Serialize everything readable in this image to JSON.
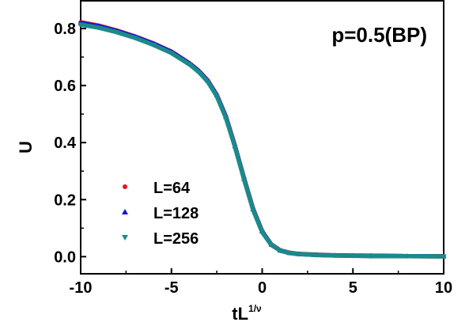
{
  "chart_data": {
    "type": "scatter",
    "title": "",
    "annotation": "p=0.5(BP)",
    "xlabel": "tL",
    "xlabel_superscript": "1/ν",
    "ylabel": "U",
    "xlim": [
      -10,
      10
    ],
    "ylim": [
      -0.06,
      0.9
    ],
    "xticks": [
      -10,
      -5,
      0,
      5,
      10
    ],
    "xtick_labels": [
      "-10",
      "-5",
      "0",
      "5",
      "10"
    ],
    "yticks": [
      0.0,
      0.2,
      0.4,
      0.6,
      0.8
    ],
    "ytick_labels": [
      "0.0",
      "0.2",
      "0.4",
      "0.6",
      "0.8"
    ],
    "grid": false,
    "legend_position": "lower-left",
    "series": [
      {
        "name": "L=64",
        "marker": "circle",
        "color": "#e8141c",
        "x": [
          -10,
          -9,
          -8,
          -7,
          -6,
          -5,
          -4,
          -3.5,
          -3,
          -2.5,
          -2,
          -1.5,
          -1,
          -0.5,
          0,
          0.5,
          1,
          1.5,
          2,
          3,
          4,
          5,
          6,
          8,
          10
        ],
        "y": [
          0.822,
          0.81,
          0.793,
          0.772,
          0.748,
          0.719,
          0.678,
          0.652,
          0.618,
          0.567,
          0.492,
          0.389,
          0.275,
          0.168,
          0.089,
          0.043,
          0.022,
          0.014,
          0.01,
          0.007,
          0.005,
          0.004,
          0.003,
          0.002,
          0.002
        ]
      },
      {
        "name": "L=128",
        "marker": "triangle-up",
        "color": "#1414d8",
        "x": [
          -10,
          -9,
          -8,
          -7,
          -6,
          -5,
          -4,
          -3.5,
          -3,
          -2.5,
          -2,
          -1.5,
          -1,
          -0.5,
          0,
          0.5,
          1,
          1.5,
          2,
          3,
          4,
          5,
          6,
          8,
          10
        ],
        "y": [
          0.819,
          0.808,
          0.791,
          0.771,
          0.747,
          0.718,
          0.677,
          0.651,
          0.617,
          0.566,
          0.49,
          0.387,
          0.273,
          0.166,
          0.088,
          0.042,
          0.021,
          0.013,
          0.009,
          0.006,
          0.004,
          0.003,
          0.003,
          0.002,
          0.001
        ]
      },
      {
        "name": "L=256",
        "marker": "triangle-down",
        "color": "#1a8a8a",
        "x": [
          -10,
          -9,
          -8,
          -7,
          -6,
          -5,
          -4,
          -3.5,
          -3,
          -2.5,
          -2,
          -1.5,
          -1,
          -0.5,
          0,
          0.5,
          1,
          1.5,
          2,
          3,
          4,
          5,
          6,
          8,
          10
        ],
        "y": [
          0.814,
          0.803,
          0.787,
          0.767,
          0.743,
          0.714,
          0.674,
          0.648,
          0.614,
          0.563,
          0.487,
          0.385,
          0.271,
          0.164,
          0.086,
          0.041,
          0.021,
          0.013,
          0.009,
          0.006,
          0.004,
          0.003,
          0.002,
          0.002,
          0.001
        ]
      }
    ]
  }
}
